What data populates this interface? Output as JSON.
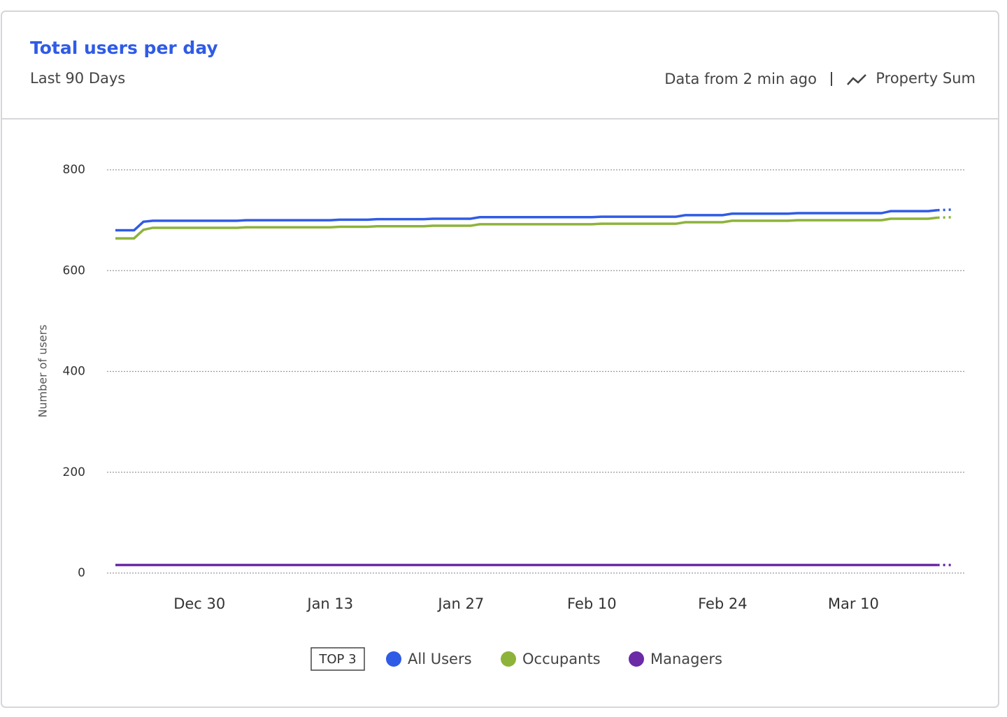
{
  "chart_data": {
    "type": "line",
    "title": "Total users per day",
    "subtitle": "Last 90 Days",
    "data_freshness": "Data from 2 min ago",
    "metric": "Property Sum",
    "ylabel": "Number of users",
    "legend_badge": "TOP 3",
    "categories": [
      null,
      null,
      null,
      null,
      null,
      null,
      null,
      null,
      null,
      "Dec 30",
      null,
      null,
      null,
      null,
      null,
      null,
      null,
      null,
      null,
      null,
      null,
      null,
      null,
      "Jan 13",
      null,
      null,
      null,
      null,
      null,
      null,
      null,
      null,
      null,
      null,
      null,
      null,
      null,
      "Jan 27",
      null,
      null,
      null,
      null,
      null,
      null,
      null,
      null,
      null,
      null,
      null,
      null,
      null,
      "Feb 10",
      null,
      null,
      null,
      null,
      null,
      null,
      null,
      null,
      null,
      null,
      null,
      null,
      null,
      "Feb 24",
      null,
      null,
      null,
      null,
      null,
      null,
      null,
      null,
      null,
      null,
      null,
      null,
      null,
      "Mar 10",
      null,
      null,
      null,
      null,
      null,
      null,
      null,
      null,
      null,
      null
    ],
    "series": [
      {
        "name": "All Users",
        "color": "#2f5be6",
        "values": [
          680,
          680,
          680,
          697,
          699,
          699,
          699,
          699,
          699,
          699,
          699,
          699,
          699,
          699,
          700,
          700,
          700,
          700,
          700,
          700,
          700,
          700,
          700,
          700,
          701,
          701,
          701,
          701,
          702,
          702,
          702,
          702,
          702,
          702,
          703,
          703,
          703,
          703,
          703,
          706,
          706,
          706,
          706,
          706,
          706,
          706,
          706,
          706,
          706,
          706,
          706,
          706,
          707,
          707,
          707,
          707,
          707,
          707,
          707,
          707,
          707,
          710,
          710,
          710,
          710,
          710,
          713,
          713,
          713,
          713,
          713,
          713,
          713,
          714,
          714,
          714,
          714,
          714,
          714,
          714,
          714,
          714,
          714,
          718,
          718,
          718,
          718,
          718,
          720,
          721
        ]
      },
      {
        "name": "Occupants",
        "color": "#8db33a",
        "values": [
          664,
          664,
          664,
          681,
          685,
          685,
          685,
          685,
          685,
          685,
          685,
          685,
          685,
          685,
          686,
          686,
          686,
          686,
          686,
          686,
          686,
          686,
          686,
          686,
          687,
          687,
          687,
          687,
          688,
          688,
          688,
          688,
          688,
          688,
          689,
          689,
          689,
          689,
          689,
          692,
          692,
          692,
          692,
          692,
          692,
          692,
          692,
          692,
          692,
          692,
          692,
          692,
          693,
          693,
          693,
          693,
          693,
          693,
          693,
          693,
          693,
          696,
          696,
          696,
          696,
          696,
          699,
          699,
          699,
          699,
          699,
          699,
          699,
          700,
          700,
          700,
          700,
          700,
          700,
          700,
          700,
          700,
          700,
          703,
          703,
          703,
          703,
          703,
          705,
          706
        ]
      },
      {
        "name": "Managers",
        "color": "#6b2aa6",
        "values": [
          16,
          16,
          16,
          16,
          16,
          16,
          16,
          16,
          16,
          16,
          16,
          16,
          16,
          16,
          16,
          16,
          16,
          16,
          16,
          16,
          16,
          16,
          16,
          16,
          16,
          16,
          16,
          16,
          16,
          16,
          16,
          16,
          16,
          16,
          16,
          16,
          16,
          16,
          16,
          16,
          16,
          16,
          16,
          16,
          16,
          16,
          16,
          16,
          16,
          16,
          16,
          16,
          16,
          16,
          16,
          16,
          16,
          16,
          16,
          16,
          16,
          16,
          16,
          16,
          16,
          16,
          16,
          16,
          16,
          16,
          16,
          16,
          16,
          16,
          16,
          16,
          16,
          16,
          16,
          16,
          16,
          16,
          16,
          16,
          16,
          16,
          16,
          16,
          16,
          16
        ]
      }
    ],
    "ylim": [
      0,
      800
    ],
    "yticks": [
      0,
      200,
      400,
      600,
      800
    ],
    "grid": true
  }
}
